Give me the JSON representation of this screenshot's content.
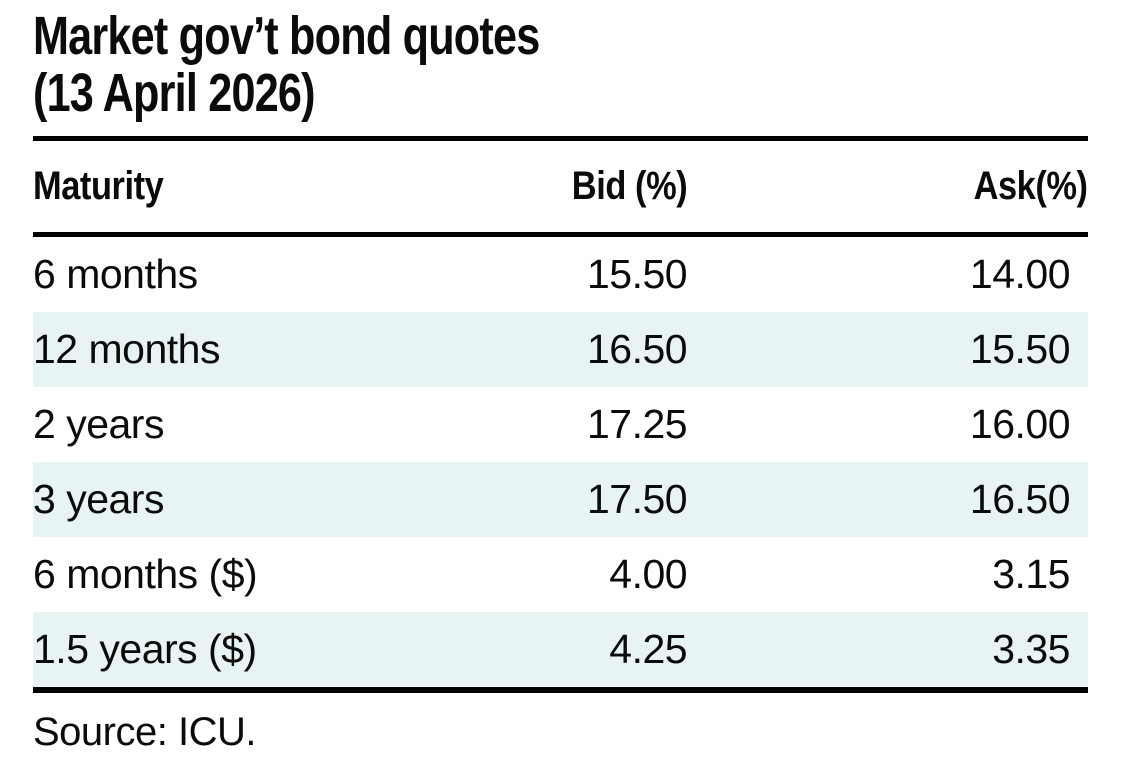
{
  "title": {
    "line1": "Market gov’t bond quotes",
    "line2": "(13 April 2026)"
  },
  "table": {
    "columns": [
      "Maturity",
      "Bid (%)",
      "Ask(%)"
    ],
    "rows": [
      {
        "maturity": "6 months",
        "bid": "15.50",
        "ask": "14.00"
      },
      {
        "maturity": "12 months",
        "bid": "16.50",
        "ask": "15.50"
      },
      {
        "maturity": "2 years",
        "bid": "17.25",
        "ask": "16.00"
      },
      {
        "maturity": "3 years",
        "bid": "17.50",
        "ask": "16.50"
      },
      {
        "maturity": "6 months ($)",
        "bid": "4.00",
        "ask": "3.15"
      },
      {
        "maturity": "1.5 years ($)",
        "bid": "4.25",
        "ask": "3.35"
      }
    ]
  },
  "source": "Source: ICU.",
  "colors": {
    "row_stripe": "#e8f4f4",
    "rule": "#000000",
    "text": "#0b0b0b",
    "background": "#ffffff"
  }
}
